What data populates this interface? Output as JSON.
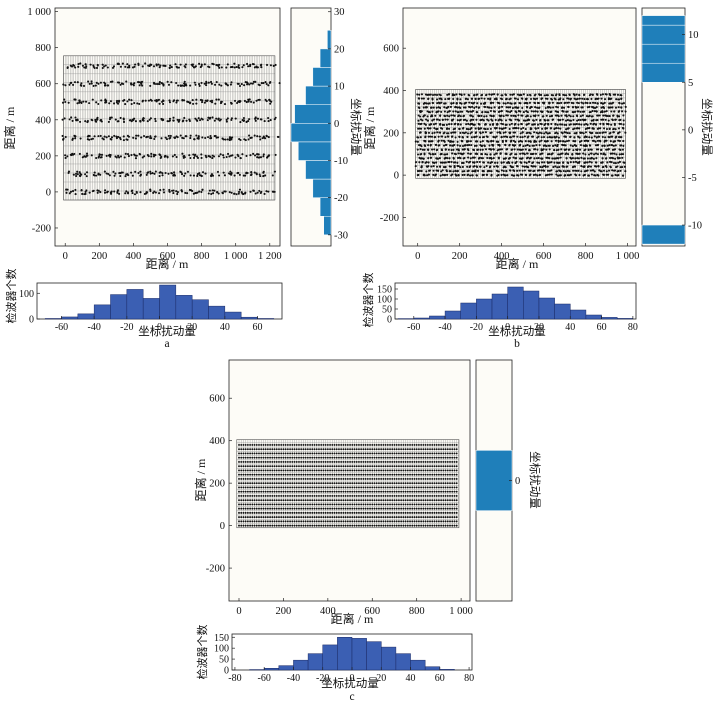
{
  "labels": {
    "distance_m": "距离 / m",
    "perturbation": "坐标扰动量",
    "geophone_count": "检波器个数"
  },
  "panel_labels": [
    "a",
    "b",
    "c"
  ],
  "colors": {
    "plot_bg": "#fdfcf7",
    "vertical_hist": "#1f7fba",
    "horizontal_hist": "#3b5fb3",
    "grid_line": "#8a8a8a",
    "point": "#111111"
  },
  "chart_data": [
    {
      "panel": "a",
      "type": "scatter",
      "xlabel": "距离 / m",
      "ylabel": "距离 / m",
      "xlim": [
        -60,
        1260
      ],
      "ylim": [
        -300,
        1020
      ],
      "xticks": [
        0,
        200,
        400,
        600,
        800,
        1000,
        1200
      ],
      "xtick_labels": [
        "0",
        "200",
        "400",
        "600",
        "800",
        "1 000",
        "1 200"
      ],
      "yticks": [
        -200,
        0,
        200,
        400,
        600,
        800,
        1000
      ],
      "ytick_labels": [
        "-200",
        "0",
        "200",
        "400",
        "600",
        "800",
        "1 000"
      ],
      "grid_lines": {
        "x_start": -10,
        "x_end": 1230,
        "x_step": 10,
        "y_start": -45,
        "y_end": 755,
        "y_step": 50
      },
      "receiver_rows": [
        0,
        100,
        200,
        300,
        400,
        500,
        600,
        700
      ],
      "row_spacing_x": 10,
      "row_x_range": [
        0,
        1220
      ],
      "max_offset_x": 40,
      "max_offset_y": 13,
      "side_hist": {
        "xlabel": "坐标扰动量",
        "ylim": [
          -33,
          31
        ],
        "yticks": [
          -30,
          -20,
          -10,
          0,
          10,
          20,
          30
        ],
        "bin_edges": [
          -30,
          -25,
          -20,
          -15,
          -10,
          -5,
          0,
          5,
          10,
          15,
          20,
          25
        ],
        "counts": [
          2,
          3,
          5,
          7,
          9,
          11,
          10,
          7,
          5,
          3,
          1
        ]
      },
      "bottom_hist": {
        "xlabel": "坐标扰动量",
        "ylabel": "检波器个数",
        "xlim": [
          -75,
          75
        ],
        "xticks": [
          -60,
          -40,
          -20,
          0,
          20,
          40,
          60
        ],
        "ylim": [
          0,
          140
        ],
        "yticks": [
          0,
          100
        ],
        "bin_edges": [
          -70,
          -60,
          -50,
          -40,
          -30,
          -20,
          -10,
          0,
          10,
          20,
          30,
          40,
          50,
          60,
          70
        ],
        "counts": [
          2,
          8,
          20,
          55,
          95,
          115,
          80,
          132,
          92,
          75,
          50,
          27,
          7,
          2
        ]
      }
    },
    {
      "panel": "b",
      "type": "scatter",
      "xlabel": "距离 / m",
      "ylabel": "距离 / m",
      "xlim": [
        -70,
        1040
      ],
      "ylim": [
        -335,
        790
      ],
      "xticks": [
        0,
        200,
        400,
        600,
        800,
        1000
      ],
      "xtick_labels": [
        "0",
        "200",
        "400",
        "600",
        "800",
        "1 000"
      ],
      "yticks": [
        -200,
        0,
        200,
        400,
        600
      ],
      "ytick_labels": [
        "-200",
        "0",
        "200",
        "400",
        "600"
      ],
      "grid_lines": {
        "x_start": -10,
        "x_end": 990,
        "x_step": 10,
        "y_start": -15,
        "y_end": 405,
        "y_step": 20
      },
      "receiver_rows": [
        0,
        20,
        40,
        60,
        80,
        100,
        120,
        140,
        160,
        180,
        200,
        220,
        240,
        260,
        280,
        300,
        320,
        340,
        360,
        380
      ],
      "row_spacing_x": 10,
      "row_x_range": [
        0,
        980
      ],
      "max_offset_x": 11,
      "max_offset_y": 3,
      "side_hist": {
        "xlabel": "坐标扰动量",
        "ylim": [
          -12.2,
          12.8
        ],
        "yticks": [
          -10,
          -5,
          0,
          5,
          10
        ],
        "bin_edges": [
          -12,
          -10,
          5,
          7,
          9,
          11,
          12
        ],
        "counts": [
          2,
          0,
          2,
          2,
          2,
          2
        ]
      },
      "bottom_hist": {
        "xlabel": "坐标扰动量",
        "ylabel": "检波器个数",
        "xlim": [
          -72,
          82
        ],
        "xticks": [
          -60,
          -40,
          -20,
          0,
          20,
          40,
          60,
          80
        ],
        "ylim": [
          0,
          180
        ],
        "yticks": [
          0,
          50,
          100,
          150
        ],
        "bin_edges": [
          -70,
          -60,
          -50,
          -40,
          -30,
          -20,
          -10,
          0,
          10,
          20,
          30,
          40,
          50,
          60,
          70,
          80
        ],
        "counts": [
          2,
          5,
          15,
          40,
          80,
          100,
          125,
          160,
          140,
          105,
          75,
          45,
          20,
          8,
          3
        ]
      }
    },
    {
      "panel": "c",
      "type": "scatter",
      "xlabel": "距离 / m",
      "ylabel": "距离 / m",
      "xlim": [
        -45,
        1040
      ],
      "ylim": [
        -355,
        780
      ],
      "xticks": [
        0,
        200,
        400,
        600,
        800,
        1000
      ],
      "xtick_labels": [
        "0",
        "200",
        "400",
        "600",
        "800",
        "1 000"
      ],
      "yticks": [
        -200,
        0,
        200,
        400,
        600
      ],
      "ytick_labels": [
        "-200",
        "0",
        "200",
        "400",
        "600"
      ],
      "grid_lines": {
        "x_start": -10,
        "x_end": 990,
        "x_step": 10,
        "y_start": -10,
        "y_end": 405,
        "y_step": 20
      },
      "receiver_rows": [
        0,
        20,
        40,
        60,
        80,
        100,
        120,
        140,
        160,
        180,
        200,
        220,
        240,
        260,
        280,
        300,
        320,
        340,
        360,
        380
      ],
      "row_spacing_x": 10,
      "row_x_range": [
        0,
        980
      ],
      "max_offset_x": 0,
      "max_offset_y": 0,
      "side_hist": {
        "xlabel": "坐标扰动量",
        "ylim": [
          -1,
          1
        ],
        "yticks": [
          0
        ],
        "bin_edges": [
          -0.25,
          0.25
        ],
        "counts": [
          1
        ]
      },
      "bottom_hist": {
        "xlabel": "坐标扰动量",
        "ylabel": "检波器个数",
        "xlim": [
          -82,
          82
        ],
        "xticks": [
          -80,
          -60,
          -40,
          -20,
          0,
          20,
          40,
          60,
          80
        ],
        "ylim": [
          0,
          165
        ],
        "yticks": [
          0,
          50,
          100,
          150
        ],
        "bin_edges": [
          -70,
          -60,
          -50,
          -40,
          -30,
          -20,
          -10,
          0,
          10,
          20,
          30,
          40,
          50,
          60,
          70
        ],
        "counts": [
          2,
          8,
          20,
          45,
          75,
          115,
          150,
          145,
          130,
          105,
          75,
          45,
          15,
          3
        ]
      }
    }
  ]
}
